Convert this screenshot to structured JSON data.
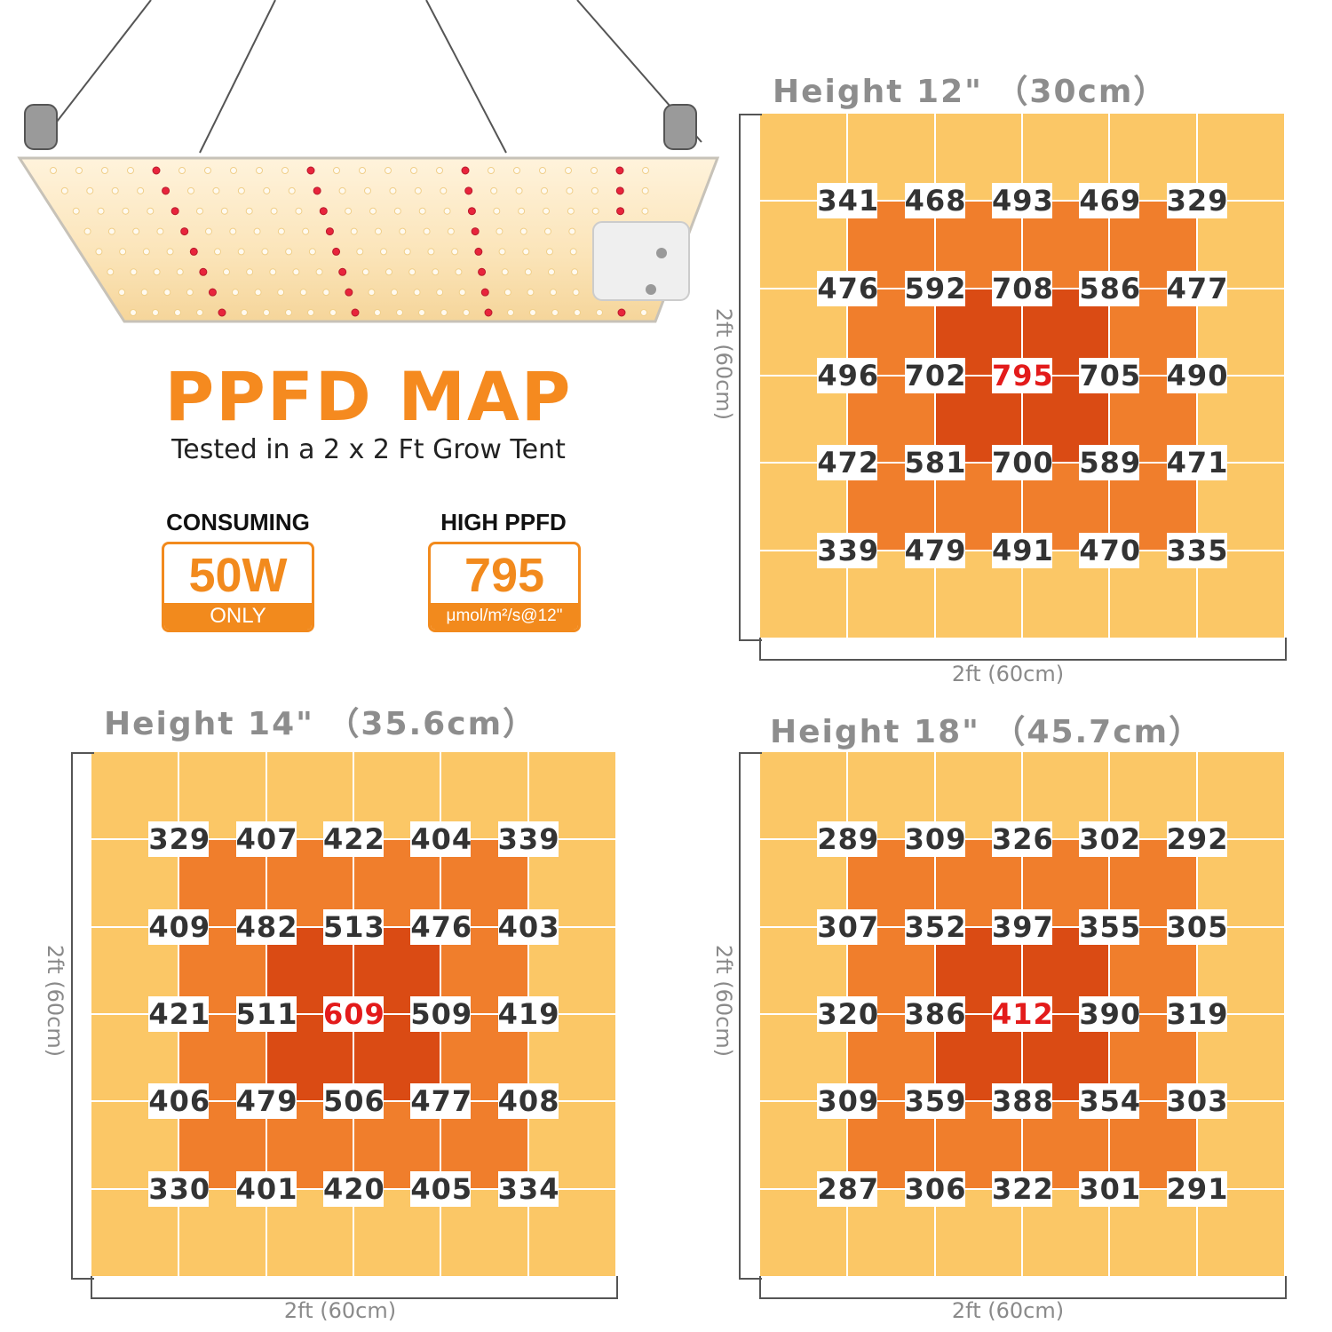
{
  "header": {
    "title": "PPFD MAP",
    "subtitle": "Tested in a 2 x 2 Ft Grow Tent"
  },
  "badges": [
    {
      "label": "CONSUMING",
      "value": "50W",
      "footer": "ONLY"
    },
    {
      "label": "HIGH PPFD",
      "value": "795",
      "footer": "μmol/m²/s@12\""
    }
  ],
  "colors": {
    "accent": "#f28a1d",
    "zone_outer": "#fbc766",
    "zone_mid": "#f07e2c",
    "zone_inner": "#da4b14",
    "peak_text": "#e31b1b"
  },
  "dimension_label": "2ft (60cm)",
  "panels": [
    {
      "title": "Height 12\" （30cm）",
      "peak": [
        2,
        2
      ],
      "values": [
        [
          "341",
          "468",
          "493",
          "469",
          "329"
        ],
        [
          "476",
          "592",
          "708",
          "586",
          "477"
        ],
        [
          "496",
          "702",
          "795",
          "705",
          "490"
        ],
        [
          "472",
          "581",
          "700",
          "589",
          "471"
        ],
        [
          "339",
          "479",
          "491",
          "470",
          "335"
        ]
      ]
    },
    {
      "title": "Height 14\" （35.6cm）",
      "peak": [
        2,
        2
      ],
      "values": [
        [
          "329",
          "407",
          "422",
          "404",
          "339"
        ],
        [
          "409",
          "482",
          "513",
          "476",
          "403"
        ],
        [
          "421",
          "511",
          "609",
          "509",
          "419"
        ],
        [
          "406",
          "479",
          "506",
          "477",
          "408"
        ],
        [
          "330",
          "401",
          "420",
          "405",
          "334"
        ]
      ]
    },
    {
      "title": "Height 18\" （45.7cm）",
      "peak": [
        2,
        2
      ],
      "values": [
        [
          "289",
          "309",
          "326",
          "302",
          "292"
        ],
        [
          "307",
          "352",
          "397",
          "355",
          "305"
        ],
        [
          "320",
          "386",
          "412",
          "390",
          "319"
        ],
        [
          "309",
          "359",
          "388",
          "354",
          "303"
        ],
        [
          "287",
          "306",
          "322",
          "301",
          "291"
        ]
      ]
    }
  ]
}
